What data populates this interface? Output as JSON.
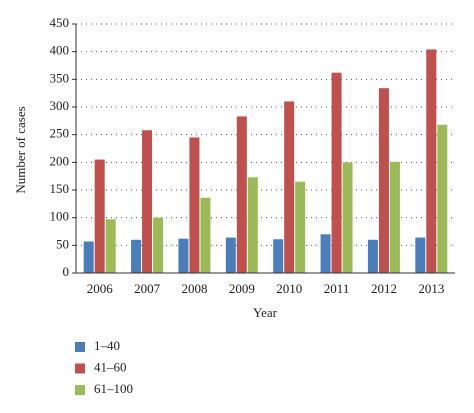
{
  "chart_data": {
    "type": "bar",
    "x_label": "Year",
    "y_label": "Number of cases",
    "categories": [
      "2006",
      "2007",
      "2008",
      "2009",
      "2010",
      "2011",
      "2012",
      "2013"
    ],
    "series": [
      {
        "name": "1–40",
        "color": "#4a7ebb",
        "values": [
          57,
          60,
          62,
          64,
          61,
          70,
          60,
          64
        ]
      },
      {
        "name": "41–60",
        "color": "#c0504d",
        "values": [
          205,
          258,
          245,
          283,
          310,
          362,
          334,
          404
        ]
      },
      {
        "name": "61–100",
        "color": "#9bbb59",
        "values": [
          97,
          100,
          136,
          173,
          165,
          200,
          201,
          268
        ]
      }
    ],
    "ylim": [
      0,
      450
    ],
    "yticks": [
      0,
      50,
      100,
      150,
      200,
      250,
      300,
      350,
      400,
      450
    ],
    "grid": true
  }
}
